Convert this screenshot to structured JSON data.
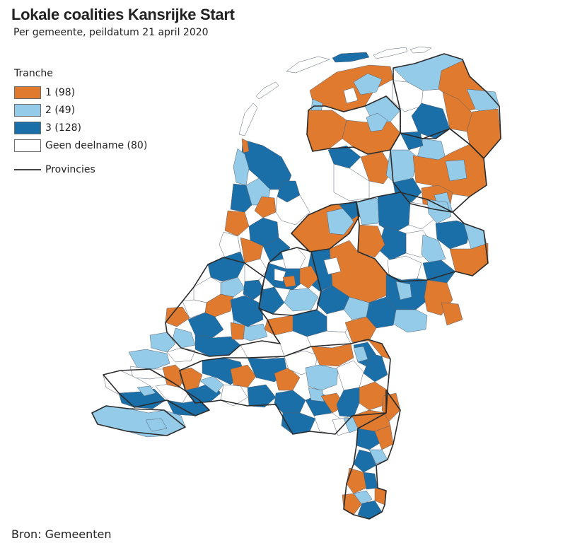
{
  "title": "Lokale coalities Kansrijke Start",
  "subtitle": "Per gemeente, peildatum 21 april 2020",
  "legend": {
    "title": "Tranche",
    "items": [
      {
        "label": "1 (98)",
        "color": "#e07a2e",
        "count": 98
      },
      {
        "label": "2 (49)",
        "color": "#93cbe8",
        "count": 49
      },
      {
        "label": "3 (128)",
        "color": "#1a6fa8",
        "count": 128
      },
      {
        "label": "Geen deelname (80)",
        "color": "#ffffff",
        "count": 80
      }
    ],
    "line_label": "Provincies"
  },
  "source": "Bron: Gemeenten"
}
